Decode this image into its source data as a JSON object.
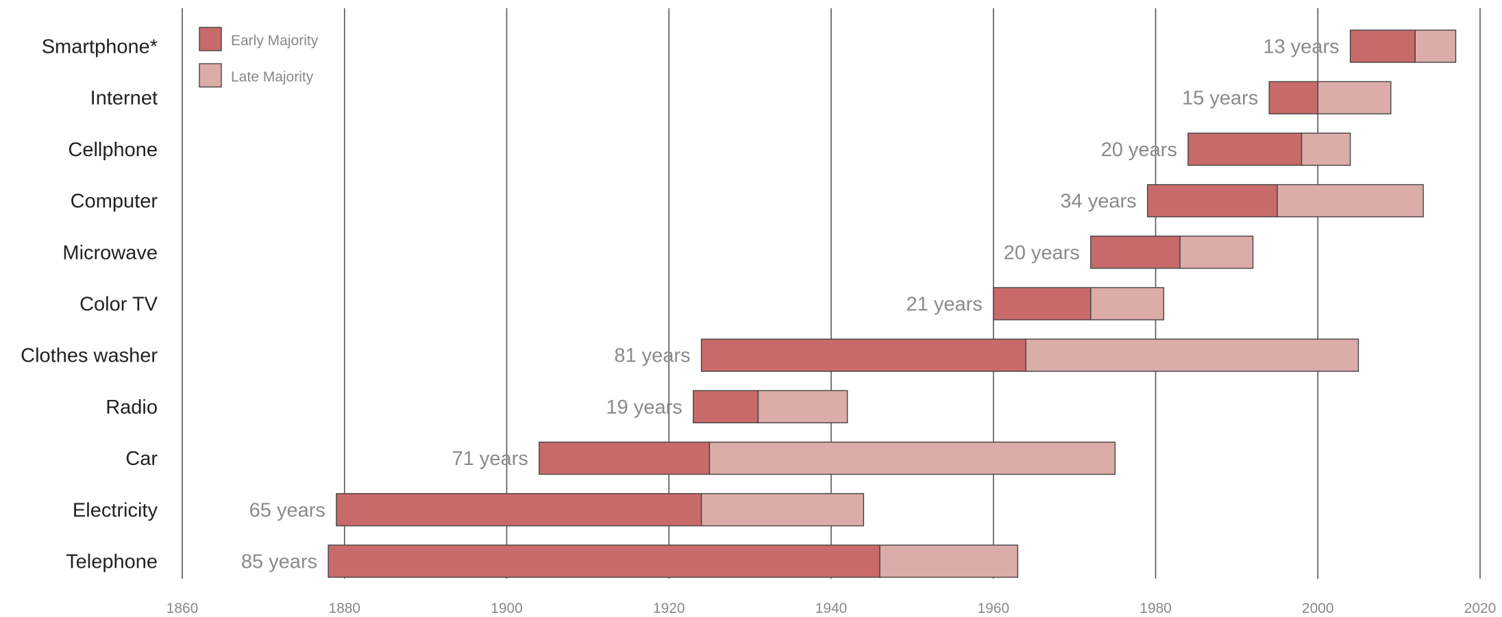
{
  "chart_data": {
    "type": "bar",
    "orientation": "horizontal-stacked",
    "categories": [
      "Smartphone*",
      "Internet",
      "Cellphone",
      "Computer",
      "Microwave",
      "Color TV",
      "Clothes washer",
      "Radio",
      "Car",
      "Electricity",
      "Telephone"
    ],
    "starts": [
      2004,
      1994,
      1984,
      1979,
      1972,
      1960,
      1924,
      1923,
      1904,
      1879,
      1878
    ],
    "series": [
      {
        "name": "Early Majority",
        "color": "#c96a6a",
        "ranges": [
          [
            2004,
            2012
          ],
          [
            1994,
            2000
          ],
          [
            1984,
            1998
          ],
          [
            1979,
            1995
          ],
          [
            1972,
            1983
          ],
          [
            1960,
            1972
          ],
          [
            1924,
            1964
          ],
          [
            1923,
            1931
          ],
          [
            1904,
            1925
          ],
          [
            1879,
            1924
          ],
          [
            1878,
            1946
          ]
        ]
      },
      {
        "name": "Late Majority",
        "color": "#dcaca8",
        "ranges": [
          [
            2012,
            2017
          ],
          [
            2000,
            2009
          ],
          [
            1998,
            2004
          ],
          [
            1995,
            2013
          ],
          [
            1983,
            1992
          ],
          [
            1972,
            1981
          ],
          [
            1964,
            2005
          ],
          [
            1931,
            1942
          ],
          [
            1925,
            1975
          ],
          [
            1924,
            1944
          ],
          [
            1946,
            1963
          ]
        ]
      }
    ],
    "duration_labels": [
      "13 years",
      "15 years",
      "20 years",
      "34 years",
      "20 years",
      "21 years",
      "81 years",
      "19 years",
      "71 years",
      "65 years",
      "85 years"
    ],
    "x_ticks": [
      "1860",
      "1880",
      "1900",
      "1920",
      "1940",
      "1960",
      "1980",
      "2000",
      "2020"
    ],
    "xlim": [
      1860,
      2020
    ],
    "grid": "vertical",
    "legend_position": "top-left"
  }
}
